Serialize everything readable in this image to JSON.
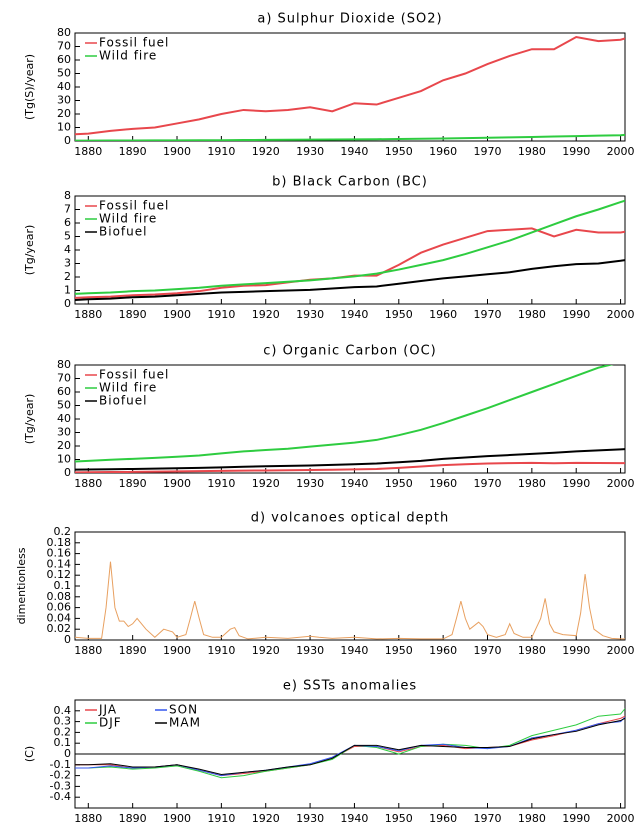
{
  "chart_data": [
    {
      "type": "line",
      "title": "a) Sulphur Dioxide (SO2)",
      "y_label": "(Tg(S)/year)",
      "legend": "upper left",
      "legend_columns": 1,
      "line_width": 2,
      "x": [
        1877,
        1880,
        1885,
        1890,
        1895,
        1900,
        1905,
        1910,
        1915,
        1920,
        1925,
        1930,
        1935,
        1940,
        1945,
        1950,
        1955,
        1960,
        1965,
        1970,
        1975,
        1980,
        1985,
        1990,
        1995,
        2000,
        2001
      ],
      "xlim": [
        1877,
        2001
      ],
      "xticks": [
        1880,
        1890,
        1900,
        1910,
        1920,
        1930,
        1940,
        1950,
        1960,
        1970,
        1980,
        1990,
        2000
      ],
      "ylim": [
        0,
        80
      ],
      "yticks": [
        0,
        10,
        20,
        30,
        40,
        50,
        60,
        70,
        80
      ],
      "series": [
        {
          "name": "Fossil fuel",
          "color": "#e8474c",
          "values": [
            5,
            5.5,
            7.5,
            9,
            10,
            13,
            16,
            20,
            23,
            22,
            23,
            25,
            22,
            28,
            27,
            32,
            37,
            45,
            50,
            57,
            63,
            68,
            68,
            77,
            74,
            75,
            76
          ]
        },
        {
          "name": "Wild fire",
          "color": "#2ecc40",
          "values": [
            0.3,
            0.3,
            0.4,
            0.4,
            0.5,
            0.5,
            0.6,
            0.6,
            0.7,
            0.8,
            0.9,
            1.0,
            1.1,
            1.2,
            1.3,
            1.5,
            1.7,
            1.9,
            2.1,
            2.4,
            2.7,
            3.0,
            3.3,
            3.6,
            4.0,
            4.3,
            4.5
          ]
        }
      ]
    },
    {
      "type": "line",
      "title": "b) Black Carbon (BC)",
      "y_label": "(Tg/year)",
      "legend": "upper left",
      "legend_columns": 1,
      "line_width": 2,
      "x": [
        1877,
        1880,
        1885,
        1890,
        1895,
        1900,
        1905,
        1910,
        1915,
        1920,
        1925,
        1930,
        1935,
        1940,
        1945,
        1950,
        1955,
        1960,
        1965,
        1970,
        1975,
        1980,
        1985,
        1990,
        1995,
        2000,
        2001
      ],
      "xlim": [
        1877,
        2001
      ],
      "xticks": [
        1880,
        1890,
        1900,
        1910,
        1920,
        1930,
        1940,
        1950,
        1960,
        1970,
        1980,
        1990,
        2000
      ],
      "ylim": [
        0,
        8
      ],
      "yticks": [
        0,
        1,
        2,
        3,
        4,
        5,
        6,
        7,
        8
      ],
      "series": [
        {
          "name": "Fossil fuel",
          "color": "#e8474c",
          "values": [
            0.45,
            0.5,
            0.55,
            0.65,
            0.7,
            0.8,
            0.95,
            1.2,
            1.35,
            1.4,
            1.6,
            1.8,
            1.9,
            2.1,
            2.1,
            2.9,
            3.8,
            4.4,
            4.9,
            5.4,
            5.5,
            5.6,
            5.0,
            5.5,
            5.3,
            5.3,
            5.35
          ]
        },
        {
          "name": "Wild fire",
          "color": "#2ecc40",
          "values": [
            0.75,
            0.8,
            0.85,
            0.95,
            1.0,
            1.1,
            1.2,
            1.35,
            1.45,
            1.55,
            1.65,
            1.75,
            1.9,
            2.05,
            2.25,
            2.55,
            2.9,
            3.25,
            3.7,
            4.2,
            4.7,
            5.3,
            5.9,
            6.5,
            7.0,
            7.55,
            7.65
          ]
        },
        {
          "name": "Biofuel",
          "color": "#000000",
          "values": [
            0.3,
            0.35,
            0.4,
            0.5,
            0.55,
            0.65,
            0.75,
            0.85,
            0.9,
            0.95,
            1.0,
            1.05,
            1.15,
            1.25,
            1.3,
            1.5,
            1.7,
            1.9,
            2.05,
            2.2,
            2.35,
            2.6,
            2.8,
            2.95,
            3.0,
            3.2,
            3.25
          ]
        }
      ]
    },
    {
      "type": "line",
      "title": "c) Organic Carbon (OC)",
      "y_label": "(Tg/year)",
      "legend": "upper left",
      "legend_columns": 1,
      "line_width": 2,
      "x": [
        1877,
        1880,
        1885,
        1890,
        1895,
        1900,
        1905,
        1910,
        1915,
        1920,
        1925,
        1930,
        1935,
        1940,
        1945,
        1950,
        1955,
        1960,
        1965,
        1970,
        1975,
        1980,
        1985,
        1990,
        1995,
        2000,
        2001
      ],
      "xlim": [
        1877,
        2001
      ],
      "xticks": [
        1880,
        1890,
        1900,
        1910,
        1920,
        1930,
        1940,
        1950,
        1960,
        1970,
        1980,
        1990,
        2000
      ],
      "ylim": [
        0,
        80
      ],
      "yticks": [
        0,
        10,
        20,
        30,
        40,
        50,
        60,
        70,
        80
      ],
      "series": [
        {
          "name": "Fossil fuel",
          "color": "#e8474c",
          "values": [
            0.5,
            0.6,
            0.7,
            0.8,
            1,
            1.2,
            1.4,
            1.6,
            1.8,
            1.9,
            2,
            2.2,
            2.4,
            2.7,
            3,
            3.8,
            4.8,
            5.8,
            6.5,
            7,
            7.3,
            7.5,
            7.2,
            7.5,
            7.4,
            7.3,
            7.3
          ]
        },
        {
          "name": "Wild fire",
          "color": "#2ecc40",
          "values": [
            8.5,
            9,
            9.8,
            10.5,
            11.2,
            12,
            13,
            14.5,
            16,
            17,
            18,
            19.5,
            21,
            22.5,
            24.5,
            28,
            32,
            37,
            42.5,
            48,
            54,
            60,
            66,
            72,
            78,
            82,
            83
          ]
        },
        {
          "name": "Biofuel",
          "color": "#000000",
          "values": [
            2.5,
            2.6,
            2.8,
            3,
            3.2,
            3.5,
            3.8,
            4.2,
            4.6,
            5,
            5.3,
            5.6,
            6,
            6.5,
            7,
            8,
            9,
            10.5,
            11.5,
            12.5,
            13.3,
            14.2,
            15,
            16,
            16.8,
            17.5,
            17.7
          ]
        }
      ]
    },
    {
      "type": "line",
      "title": "d) volcanoes optical depth",
      "y_label": "dimentionless",
      "line_width": 1,
      "x": [
        1877,
        1880,
        1883,
        1884,
        1885,
        1886,
        1887,
        1888,
        1889,
        1890,
        1891,
        1893,
        1895,
        1897,
        1899,
        1900,
        1902,
        1903,
        1904,
        1905,
        1906,
        1908,
        1910,
        1912,
        1913,
        1914,
        1916,
        1920,
        1925,
        1930,
        1932,
        1935,
        1940,
        1945,
        1950,
        1955,
        1960,
        1962,
        1963,
        1964,
        1965,
        1966,
        1968,
        1969,
        1970,
        1972,
        1974,
        1975,
        1976,
        1978,
        1980,
        1982,
        1983,
        1984,
        1985,
        1987,
        1990,
        1991,
        1992,
        1993,
        1994,
        1996,
        1998,
        2000,
        2001
      ],
      "xlim": [
        1877,
        2001
      ],
      "xticks": [
        1880,
        1890,
        1900,
        1910,
        1920,
        1930,
        1940,
        1950,
        1960,
        1970,
        1980,
        1990,
        2000
      ],
      "ylim": [
        0,
        0.2
      ],
      "yticks": [
        0,
        0.02,
        0.04,
        0.06,
        0.08,
        0.1,
        0.12,
        0.14,
        0.16,
        0.18,
        0.2
      ],
      "series": [
        {
          "color": "#e8a060",
          "values": [
            0.005,
            0.003,
            0.003,
            0.06,
            0.145,
            0.06,
            0.035,
            0.035,
            0.025,
            0.03,
            0.04,
            0.02,
            0.005,
            0.02,
            0.015,
            0.005,
            0.01,
            0.04,
            0.072,
            0.04,
            0.01,
            0.005,
            0.005,
            0.02,
            0.023,
            0.008,
            0.002,
            0.005,
            0.003,
            0.007,
            0.005,
            0.003,
            0.005,
            0.002,
            0.003,
            0.002,
            0.002,
            0.01,
            0.04,
            0.072,
            0.04,
            0.02,
            0.033,
            0.025,
            0.01,
            0.005,
            0.01,
            0.03,
            0.012,
            0.005,
            0.005,
            0.04,
            0.077,
            0.03,
            0.015,
            0.01,
            0.008,
            0.05,
            0.122,
            0.06,
            0.02,
            0.008,
            0.003,
            0.002,
            0.002
          ]
        }
      ]
    },
    {
      "type": "line",
      "title": "e) SSTs anomalies",
      "y_label": "(C)",
      "legend": "upper left",
      "legend_columns": 2,
      "line_width": 1,
      "hline": 0,
      "x": [
        1877,
        1880,
        1885,
        1890,
        1895,
        1900,
        1905,
        1910,
        1915,
        1920,
        1925,
        1930,
        1935,
        1940,
        1945,
        1950,
        1955,
        1960,
        1965,
        1970,
        1975,
        1980,
        1985,
        1990,
        1995,
        2000,
        2001
      ],
      "xlim": [
        1877,
        2001
      ],
      "xticks": [
        1880,
        1890,
        1900,
        1910,
        1920,
        1930,
        1940,
        1950,
        1960,
        1970,
        1980,
        1990,
        2000
      ],
      "ylim": [
        -0.5,
        0.5
      ],
      "yticks": [
        -0.4,
        -0.3,
        -0.2,
        -0.1,
        0,
        0.1,
        0.2,
        0.3,
        0.4
      ],
      "series": [
        {
          "name": "JJA",
          "color": "#e8474c",
          "values": [
            -0.1,
            -0.1,
            -0.1,
            -0.13,
            -0.12,
            -0.1,
            -0.15,
            -0.2,
            -0.18,
            -0.16,
            -0.13,
            -0.1,
            -0.04,
            0.07,
            0.07,
            0.02,
            0.07,
            0.08,
            0.05,
            0.06,
            0.07,
            0.13,
            0.17,
            0.22,
            0.28,
            0.33,
            0.35
          ]
        },
        {
          "name": "DJF",
          "color": "#2ecc40",
          "values": [
            -0.13,
            -0.13,
            -0.12,
            -0.14,
            -0.13,
            -0.11,
            -0.16,
            -0.22,
            -0.2,
            -0.16,
            -0.13,
            -0.1,
            -0.05,
            0.08,
            0.06,
            0.0,
            0.07,
            0.09,
            0.08,
            0.05,
            0.08,
            0.17,
            0.22,
            0.27,
            0.35,
            0.37,
            0.42
          ]
        },
        {
          "name": "SON",
          "color": "#3355ee",
          "values": [
            -0.13,
            -0.13,
            -0.11,
            -0.13,
            -0.12,
            -0.1,
            -0.15,
            -0.2,
            -0.17,
            -0.15,
            -0.12,
            -0.09,
            -0.03,
            0.08,
            0.07,
            0.03,
            0.08,
            0.09,
            0.06,
            0.05,
            0.07,
            0.15,
            0.18,
            0.22,
            0.28,
            0.3,
            0.34
          ]
        },
        {
          "name": "MAM",
          "color": "#000000",
          "values": [
            -0.1,
            -0.1,
            -0.09,
            -0.12,
            -0.12,
            -0.1,
            -0.14,
            -0.19,
            -0.17,
            -0.15,
            -0.12,
            -0.1,
            -0.04,
            0.08,
            0.08,
            0.04,
            0.08,
            0.07,
            0.06,
            0.06,
            0.07,
            0.14,
            0.18,
            0.21,
            0.27,
            0.31,
            0.33
          ]
        }
      ]
    }
  ]
}
